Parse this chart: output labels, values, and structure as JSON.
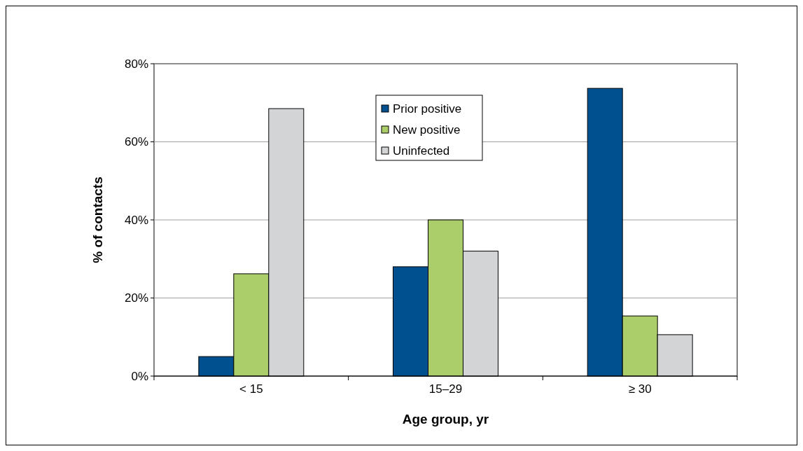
{
  "chart_data": {
    "type": "bar",
    "xlabel": "Age group, yr",
    "ylabel": "% of contacts",
    "categories": [
      "< 15",
      "15–29",
      "≥ 30"
    ],
    "series": [
      {
        "name": "Prior positive",
        "color": "#00508f",
        "values": [
          5,
          28,
          73.7
        ]
      },
      {
        "name": "New positive",
        "color": "#abcd6a",
        "values": [
          26.2,
          40,
          15.4
        ]
      },
      {
        "name": "Uninfected",
        "color": "#d3d4d6",
        "values": [
          68.5,
          32,
          10.6
        ]
      }
    ],
    "ylim": [
      0,
      80
    ],
    "yticks": [
      {
        "value": 0,
        "label": "0%"
      },
      {
        "value": 20,
        "label": "20%"
      },
      {
        "value": 40,
        "label": "40%"
      },
      {
        "value": 60,
        "label": "60%"
      },
      {
        "value": 80,
        "label": "80%"
      }
    ],
    "grid": "y",
    "legend": "top"
  }
}
